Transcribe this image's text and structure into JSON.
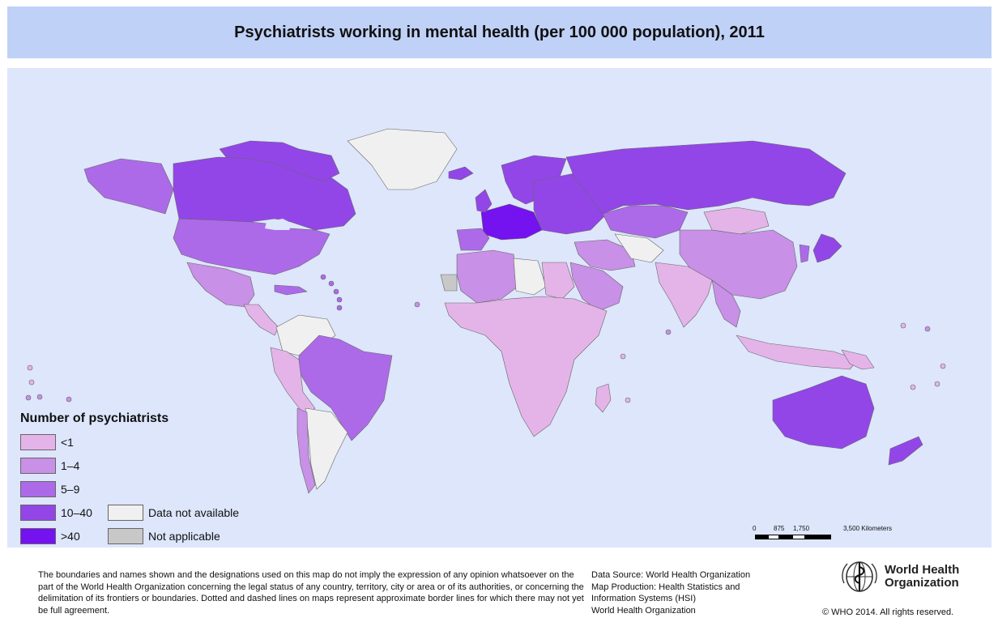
{
  "title": "Psychiatrists working in mental health (per 100 000 population), 2011",
  "colors": {
    "ocean": "#dde6fb",
    "title_bg": "#bfd1f7",
    "lt1": "#e4b4e8",
    "r1_4": "#c890e6",
    "r5_9": "#ac6ae8",
    "r10_40": "#9246e8",
    "gt40": "#7412f0",
    "na": "#f0f0f0",
    "not_applicable": "#c8c8c8",
    "border": "#666666"
  },
  "legend": {
    "title": "Number of psychiatrists",
    "items": [
      {
        "label": "<1",
        "color": "#e4b4e8"
      },
      {
        "label": "1–4",
        "color": "#c890e6"
      },
      {
        "label": "5–9",
        "color": "#ac6ae8"
      },
      {
        "label": "10–40",
        "color": "#9246e8"
      },
      {
        "label": ">40",
        "color": "#7412f0"
      },
      {
        "label": "Data not available",
        "color": "#f0f0f0"
      },
      {
        "label": "Not applicable",
        "color": "#c8c8c8"
      }
    ]
  },
  "scale": {
    "ticks": [
      "0",
      "875",
      "1,750",
      "3,500 Kilometers"
    ]
  },
  "disclaimer": "The boundaries and names shown and the designations used on this map do not imply the expression of any opinion whatsoever on the part of the World Health Organization concerning the legal status of any country, territory, city or area or of its authorities, or concerning the delimitation of its frontiers or boundaries. Dotted and dashed lines on maps represent approximate border lines for which there may not yet be full agreement.",
  "source": {
    "line1": "Data Source: World Health Organization",
    "line2": "Map Production: Health Statistics and",
    "line3": "Information Systems (HSI)",
    "line4": "World Health Organization"
  },
  "logo": {
    "line1": "World Health",
    "line2": "Organization"
  },
  "copyright": "© WHO 2014. All rights reserved.",
  "regions": [
    {
      "name": "alaska",
      "level": "r5_9"
    },
    {
      "name": "canada",
      "level": "r10_40"
    },
    {
      "name": "canada-arctic",
      "level": "r10_40"
    },
    {
      "name": "greenland",
      "level": "na"
    },
    {
      "name": "usa",
      "level": "r5_9"
    },
    {
      "name": "mexico",
      "level": "r1_4"
    },
    {
      "name": "central-america",
      "level": "lt1"
    },
    {
      "name": "caribbean",
      "level": "r5_9"
    },
    {
      "name": "colombia-venezuela",
      "level": "na"
    },
    {
      "name": "brazil",
      "level": "r5_9"
    },
    {
      "name": "andes",
      "level": "lt1"
    },
    {
      "name": "argentina",
      "level": "na"
    },
    {
      "name": "chile",
      "level": "r1_4"
    },
    {
      "name": "western-europe",
      "level": "gt40"
    },
    {
      "name": "scandinavia",
      "level": "r10_40"
    },
    {
      "name": "iceland",
      "level": "r10_40"
    },
    {
      "name": "uk",
      "level": "r10_40"
    },
    {
      "name": "iberia",
      "level": "r5_9"
    },
    {
      "name": "eastern-europe",
      "level": "r10_40"
    },
    {
      "name": "russia",
      "level": "r10_40"
    },
    {
      "name": "kazakhstan",
      "level": "r5_9"
    },
    {
      "name": "mongolia",
      "level": "lt1"
    },
    {
      "name": "china",
      "level": "r1_4"
    },
    {
      "name": "japan",
      "level": "r10_40"
    },
    {
      "name": "korea",
      "level": "r5_9"
    },
    {
      "name": "middle-east",
      "level": "r1_4"
    },
    {
      "name": "arabia",
      "level": "r1_4"
    },
    {
      "name": "central-asia",
      "level": "na"
    },
    {
      "name": "south-asia",
      "level": "lt1"
    },
    {
      "name": "southeast-asia",
      "level": "r1_4"
    },
    {
      "name": "indonesia",
      "level": "lt1"
    },
    {
      "name": "north-africa",
      "level": "r1_4"
    },
    {
      "name": "libya",
      "level": "na"
    },
    {
      "name": "egypt",
      "level": "lt1"
    },
    {
      "name": "western-sahara",
      "level": "not_applicable"
    },
    {
      "name": "sub-saharan-africa",
      "level": "lt1"
    },
    {
      "name": "madagascar",
      "level": "lt1"
    },
    {
      "name": "australia",
      "level": "r10_40"
    },
    {
      "name": "new-zealand",
      "level": "r10_40"
    },
    {
      "name": "papua",
      "level": "lt1"
    }
  ]
}
